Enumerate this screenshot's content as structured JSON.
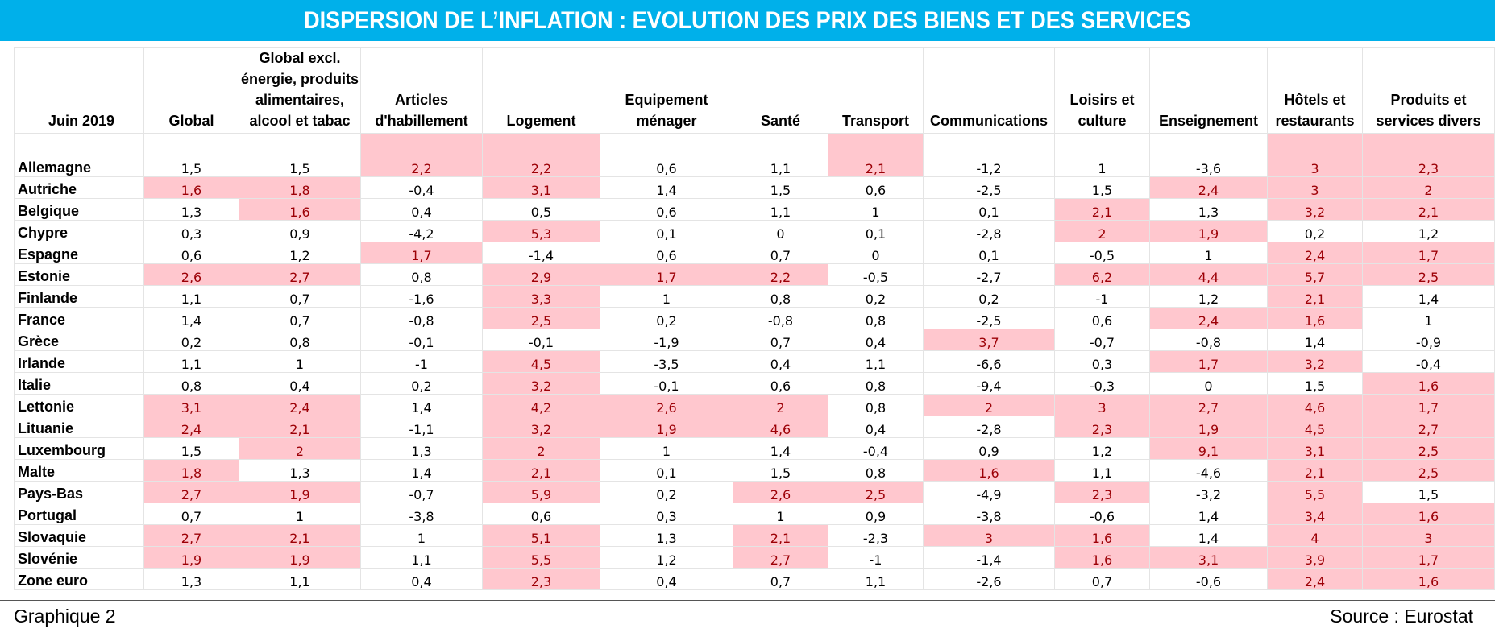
{
  "title": "DISPERSION DE L’INFLATION : EVOLUTION DES PRIX DES BIENS ET DES SERVICES",
  "footer": {
    "left": "Graphique 2",
    "right": "Source : Eurostat"
  },
  "colors": {
    "banner": "#00B0EA",
    "highlight_fill": "#FFC7CE",
    "highlight_text": "#9C0006"
  },
  "chart_data": {
    "type": "table",
    "corner_label": "Juin 2019",
    "columns": [
      "Global",
      "Global excl. énergie, produits alimentaires, alcool et tabac",
      "Articles d'habillement",
      "Logement",
      "Equipement ménager",
      "Santé",
      "Transport",
      "Communications",
      "Loisirs et culture",
      "Enseignement",
      "Hôtels et restaurants",
      "Produits et services divers"
    ],
    "rows": [
      {
        "country": "Allemagne",
        "values": [
          "1,5",
          "1,5",
          "2,2",
          "2,2",
          "0,6",
          "1,1",
          "2,1",
          "-1,2",
          "1",
          "-3,6",
          "3",
          "2,3"
        ],
        "highlight": [
          0,
          0,
          1,
          1,
          0,
          0,
          1,
          0,
          0,
          0,
          1,
          1
        ]
      },
      {
        "country": "Autriche",
        "values": [
          "1,6",
          "1,8",
          "-0,4",
          "3,1",
          "1,4",
          "1,5",
          "0,6",
          "-2,5",
          "1,5",
          "2,4",
          "3",
          "2"
        ],
        "highlight": [
          1,
          1,
          0,
          1,
          0,
          0,
          0,
          0,
          0,
          1,
          1,
          1
        ]
      },
      {
        "country": "Belgique",
        "values": [
          "1,3",
          "1,6",
          "0,4",
          "0,5",
          "0,6",
          "1,1",
          "1",
          "0,1",
          "2,1",
          "1,3",
          "3,2",
          "2,1"
        ],
        "highlight": [
          0,
          1,
          0,
          0,
          0,
          0,
          0,
          0,
          1,
          0,
          1,
          1
        ]
      },
      {
        "country": "Chypre",
        "values": [
          "0,3",
          "0,9",
          "-4,2",
          "5,3",
          "0,1",
          "0",
          "0,1",
          "-2,8",
          "2",
          "1,9",
          "0,2",
          "1,2"
        ],
        "highlight": [
          0,
          0,
          0,
          1,
          0,
          0,
          0,
          0,
          1,
          1,
          0,
          0
        ]
      },
      {
        "country": "Espagne",
        "values": [
          "0,6",
          "1,2",
          "1,7",
          "-1,4",
          "0,6",
          "0,7",
          "0",
          "0,1",
          "-0,5",
          "1",
          "2,4",
          "1,7"
        ],
        "highlight": [
          0,
          0,
          1,
          0,
          0,
          0,
          0,
          0,
          0,
          0,
          1,
          1
        ]
      },
      {
        "country": "Estonie",
        "values": [
          "2,6",
          "2,7",
          "0,8",
          "2,9",
          "1,7",
          "2,2",
          "-0,5",
          "-2,7",
          "6,2",
          "4,4",
          "5,7",
          "2,5"
        ],
        "highlight": [
          1,
          1,
          0,
          1,
          1,
          1,
          0,
          0,
          1,
          1,
          1,
          1
        ]
      },
      {
        "country": "Finlande",
        "values": [
          "1,1",
          "0,7",
          "-1,6",
          "3,3",
          "1",
          "0,8",
          "0,2",
          "0,2",
          "-1",
          "1,2",
          "2,1",
          "1,4"
        ],
        "highlight": [
          0,
          0,
          0,
          1,
          0,
          0,
          0,
          0,
          0,
          0,
          1,
          0
        ]
      },
      {
        "country": "France",
        "values": [
          "1,4",
          "0,7",
          "-0,8",
          "2,5",
          "0,2",
          "-0,8",
          "0,8",
          "-2,5",
          "0,6",
          "2,4",
          "1,6",
          "1"
        ],
        "highlight": [
          0,
          0,
          0,
          1,
          0,
          0,
          0,
          0,
          0,
          1,
          1,
          0
        ]
      },
      {
        "country": "Grèce",
        "values": [
          "0,2",
          "0,8",
          "-0,1",
          "-0,1",
          "-1,9",
          "0,7",
          "0,4",
          "3,7",
          "-0,7",
          "-0,8",
          "1,4",
          "-0,9"
        ],
        "highlight": [
          0,
          0,
          0,
          0,
          0,
          0,
          0,
          1,
          0,
          0,
          0,
          0
        ]
      },
      {
        "country": "Irlande",
        "values": [
          "1,1",
          "1",
          "-1",
          "4,5",
          "-3,5",
          "0,4",
          "1,1",
          "-6,6",
          "0,3",
          "1,7",
          "3,2",
          "-0,4"
        ],
        "highlight": [
          0,
          0,
          0,
          1,
          0,
          0,
          0,
          0,
          0,
          1,
          1,
          0
        ]
      },
      {
        "country": "Italie",
        "values": [
          "0,8",
          "0,4",
          "0,2",
          "3,2",
          "-0,1",
          "0,6",
          "0,8",
          "-9,4",
          "-0,3",
          "0",
          "1,5",
          "1,6"
        ],
        "highlight": [
          0,
          0,
          0,
          1,
          0,
          0,
          0,
          0,
          0,
          0,
          0,
          1
        ]
      },
      {
        "country": "Lettonie",
        "values": [
          "3,1",
          "2,4",
          "1,4",
          "4,2",
          "2,6",
          "2",
          "0,8",
          "2",
          "3",
          "2,7",
          "4,6",
          "1,7"
        ],
        "highlight": [
          1,
          1,
          0,
          1,
          1,
          1,
          0,
          1,
          1,
          1,
          1,
          1
        ]
      },
      {
        "country": "Lituanie",
        "values": [
          "2,4",
          "2,1",
          "-1,1",
          "3,2",
          "1,9",
          "4,6",
          "0,4",
          "-2,8",
          "2,3",
          "1,9",
          "4,5",
          "2,7"
        ],
        "highlight": [
          1,
          1,
          0,
          1,
          1,
          1,
          0,
          0,
          1,
          1,
          1,
          1
        ]
      },
      {
        "country": "Luxembourg",
        "values": [
          "1,5",
          "2",
          "1,3",
          "2",
          "1",
          "1,4",
          "-0,4",
          "0,9",
          "1,2",
          "9,1",
          "3,1",
          "2,5"
        ],
        "highlight": [
          0,
          1,
          0,
          1,
          0,
          0,
          0,
          0,
          0,
          1,
          1,
          1
        ]
      },
      {
        "country": "Malte",
        "values": [
          "1,8",
          "1,3",
          "1,4",
          "2,1",
          "0,1",
          "1,5",
          "0,8",
          "1,6",
          "1,1",
          "-4,6",
          "2,1",
          "2,5"
        ],
        "highlight": [
          1,
          0,
          0,
          1,
          0,
          0,
          0,
          1,
          0,
          0,
          1,
          1
        ]
      },
      {
        "country": "Pays-Bas",
        "values": [
          "2,7",
          "1,9",
          "-0,7",
          "5,9",
          "0,2",
          "2,6",
          "2,5",
          "-4,9",
          "2,3",
          "-3,2",
          "5,5",
          "1,5"
        ],
        "highlight": [
          1,
          1,
          0,
          1,
          0,
          1,
          1,
          0,
          1,
          0,
          1,
          0
        ]
      },
      {
        "country": "Portugal",
        "values": [
          "0,7",
          "1",
          "-3,8",
          "0,6",
          "0,3",
          "1",
          "0,9",
          "-3,8",
          "-0,6",
          "1,4",
          "3,4",
          "1,6"
        ],
        "highlight": [
          0,
          0,
          0,
          0,
          0,
          0,
          0,
          0,
          0,
          0,
          1,
          1
        ]
      },
      {
        "country": "Slovaquie",
        "values": [
          "2,7",
          "2,1",
          "1",
          "5,1",
          "1,3",
          "2,1",
          "-2,3",
          "3",
          "1,6",
          "1,4",
          "4",
          "3"
        ],
        "highlight": [
          1,
          1,
          0,
          1,
          0,
          1,
          0,
          1,
          1,
          0,
          1,
          1
        ]
      },
      {
        "country": "Slovénie",
        "values": [
          "1,9",
          "1,9",
          "1,1",
          "5,5",
          "1,2",
          "2,7",
          "-1",
          "-1,4",
          "1,6",
          "3,1",
          "3,9",
          "1,7"
        ],
        "highlight": [
          1,
          1,
          0,
          1,
          0,
          1,
          0,
          0,
          1,
          1,
          1,
          1
        ]
      },
      {
        "country": "Zone euro",
        "values": [
          "1,3",
          "1,1",
          "0,4",
          "2,3",
          "0,4",
          "0,7",
          "1,1",
          "-2,6",
          "0,7",
          "-0,6",
          "2,4",
          "1,6"
        ],
        "highlight": [
          0,
          0,
          0,
          1,
          0,
          0,
          0,
          0,
          0,
          0,
          1,
          1
        ]
      }
    ]
  }
}
